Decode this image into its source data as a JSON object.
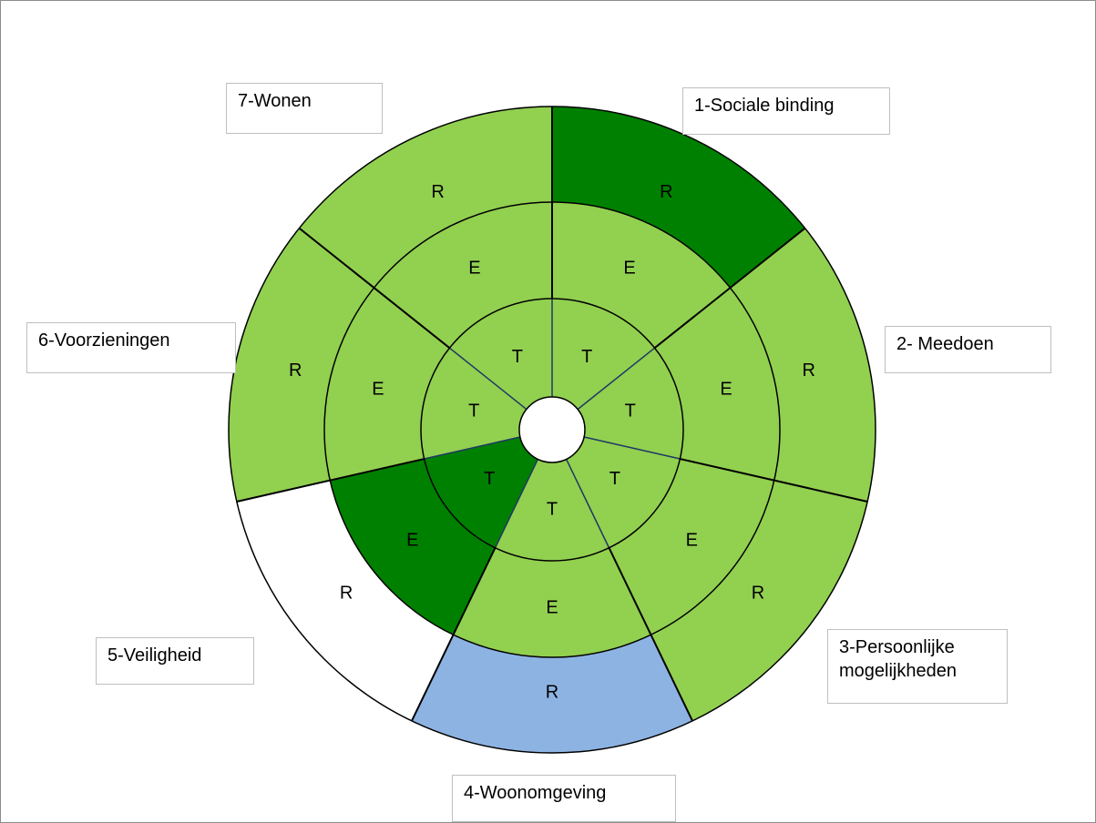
{
  "colors": {
    "light_green": "#92d050",
    "dark_green": "#008000",
    "blue": "#8db3e2",
    "white": "#ffffff",
    "outline": "#000000",
    "inner_spoke": "#1f3864"
  },
  "ring_labels": {
    "outer": "R",
    "middle": "E",
    "inner": "T"
  },
  "segments": [
    {
      "id": "1",
      "label": "1-Sociale binding",
      "outer_fill": "dark_green",
      "middle_fill": "light_green",
      "inner_fill": "light_green"
    },
    {
      "id": "2",
      "label": "2- Meedoen",
      "outer_fill": "light_green",
      "middle_fill": "light_green",
      "inner_fill": "light_green"
    },
    {
      "id": "3",
      "label": "3-Persoonlijke\nmogelijkheden",
      "outer_fill": "light_green",
      "middle_fill": "light_green",
      "inner_fill": "light_green"
    },
    {
      "id": "4",
      "label": "4-Woonomgeving",
      "outer_fill": "blue",
      "middle_fill": "light_green",
      "inner_fill": "light_green"
    },
    {
      "id": "5",
      "label": "5-Veiligheid",
      "outer_fill": "white",
      "middle_fill": "dark_green",
      "inner_fill": "dark_green"
    },
    {
      "id": "6",
      "label": "6-Voorzieningen",
      "outer_fill": "light_green",
      "middle_fill": "light_green",
      "inner_fill": "light_green"
    },
    {
      "id": "7",
      "label": "7-Wonen",
      "outer_fill": "light_green",
      "middle_fill": "light_green",
      "inner_fill": "light_green"
    }
  ]
}
